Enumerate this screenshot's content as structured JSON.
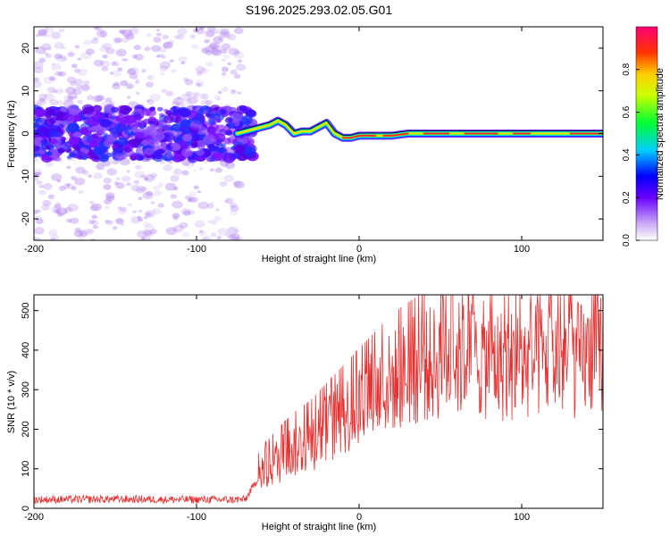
{
  "chart_data": [
    {
      "type": "heatmap",
      "title": "S196.2025.293.02.05.G01",
      "xlabel": "Height of straight line (km)",
      "ylabel": "Frequency (Hz)",
      "xlim": [
        -200,
        150
      ],
      "ylim": [
        -25,
        25
      ],
      "xticks": [
        -200,
        -100,
        0,
        100
      ],
      "yticks": [
        -20,
        -10,
        0,
        10,
        20
      ],
      "colorbar": {
        "label": "Normalized spectral amplitude",
        "range": [
          0,
          1
        ],
        "ticks": [
          "0.0",
          "0.2",
          "0.4",
          "0.6",
          "0.8"
        ]
      },
      "ridge": {
        "description_points_x": [
          -75,
          -65,
          -55,
          -50,
          -45,
          -40,
          -35,
          -30,
          -25,
          -20,
          -15,
          -10,
          -5,
          0,
          10,
          20,
          30,
          50,
          70,
          100,
          120,
          150
        ],
        "description_points_y": [
          0,
          1,
          2,
          3,
          2,
          0,
          0.5,
          0.5,
          1.5,
          2.5,
          0,
          -1,
          -1,
          -0.5,
          -0.5,
          -0.5,
          0,
          0,
          0,
          0,
          0,
          0
        ],
        "series_color": "#000000"
      }
    },
    {
      "type": "line",
      "xlabel": "Height of straight line (km)",
      "ylabel": "SNR (10 * v/v)",
      "xlim": [
        -200,
        150
      ],
      "ylim": [
        0,
        540
      ],
      "xticks": [
        -200,
        -100,
        0,
        100
      ],
      "yticks": [
        0,
        100,
        200,
        300,
        400,
        500
      ],
      "series": [
        {
          "name": "SNR",
          "color": "#e83030",
          "x": [
            -200,
            -150,
            -100,
            -70,
            -60,
            -50,
            -40,
            -30,
            -20,
            -10,
            0,
            10,
            20,
            30,
            40,
            50,
            60,
            70,
            80,
            90,
            100,
            110,
            120,
            130,
            140,
            150
          ],
          "y": [
            22,
            23,
            22,
            22,
            90,
            120,
            150,
            170,
            200,
            230,
            260,
            290,
            320,
            340,
            360,
            370,
            375,
            380,
            370,
            360,
            365,
            370,
            375,
            370,
            380,
            400
          ]
        }
      ]
    }
  ]
}
